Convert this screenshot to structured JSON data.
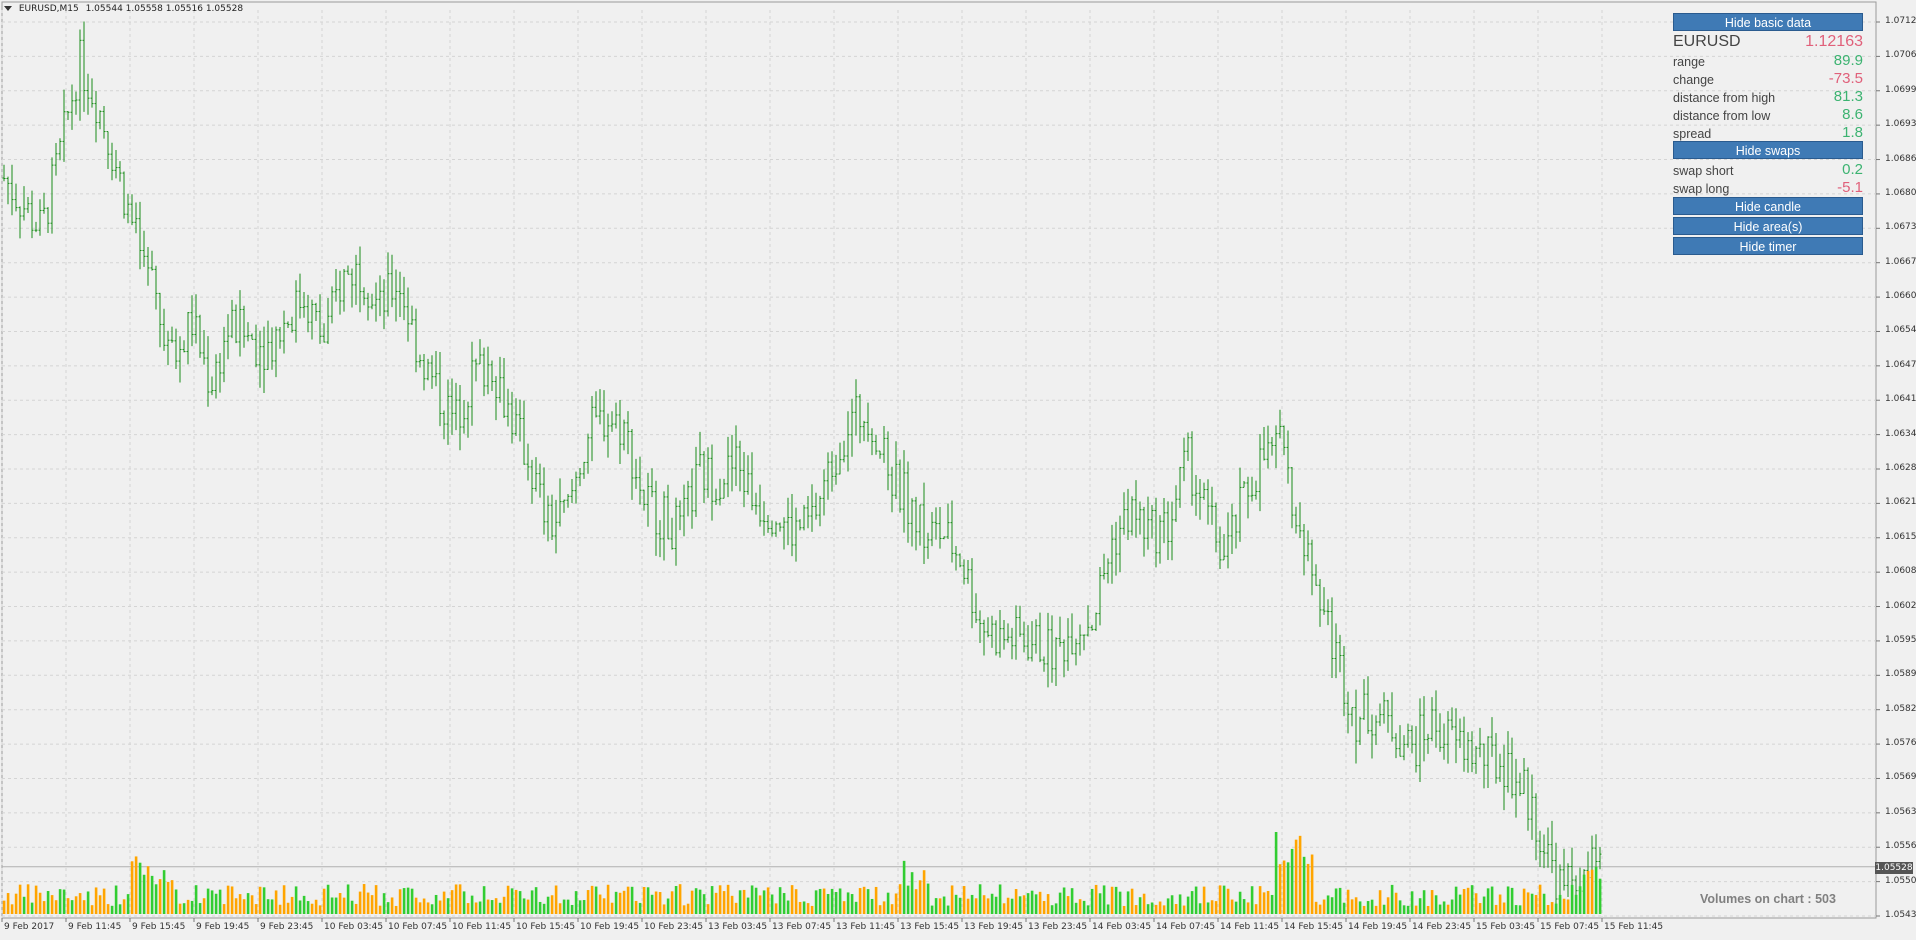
{
  "header": {
    "symbol_timeframe": "EURUSD,M15",
    "ohlc": "1.05544 1.05558 1.05516 1.05528"
  },
  "panel": {
    "hide_basic_data": "Hide basic data",
    "symbol": "EURUSD",
    "symbol_value": "1.12163",
    "rows": [
      {
        "label": "range",
        "value": "89.9",
        "color": "green"
      },
      {
        "label": "change",
        "value": "-73.5",
        "color": "red"
      },
      {
        "label": "distance from high",
        "value": "81.3",
        "color": "green"
      },
      {
        "label": "distance from low",
        "value": "8.6",
        "color": "green"
      },
      {
        "label": "spread",
        "value": "1.8",
        "color": "green"
      }
    ],
    "hide_swaps": "Hide swaps",
    "swaps": [
      {
        "label": "swap short",
        "value": "0.2",
        "color": "green"
      },
      {
        "label": "swap long",
        "value": "-5.1",
        "color": "red"
      }
    ],
    "hide_candle": "Hide candle",
    "hide_areas": "Hide area(s)",
    "hide_timer": "Hide timer"
  },
  "volumes_label": "Volumes on chart : 503",
  "current_price": "1.05528",
  "colors": {
    "background": "#f0f0f0",
    "bar_up_down": "#1a8c1a",
    "volume_green": "#32cd32",
    "volume_orange": "#ffa500",
    "button": "#3f7ab5",
    "positive": "#3cb371",
    "negative": "#e0607a"
  },
  "chart_data": {
    "type": "ohlc",
    "price_ticks": [
      "1.07125",
      "1.07060",
      "1.06995",
      "1.06930",
      "1.06865",
      "1.06800",
      "1.06735",
      "1.06670",
      "1.06605",
      "1.06540",
      "1.06475",
      "1.06410",
      "1.06345",
      "1.06280",
      "1.06215",
      "1.06150",
      "1.06085",
      "1.06020",
      "1.05955",
      "1.05890",
      "1.05825",
      "1.05760",
      "1.05695",
      "1.05630",
      "1.05565",
      "1.05500",
      "1.05435"
    ],
    "price_range": [
      1.05435,
      1.07125
    ],
    "time_ticks": [
      "9 Feb 2017",
      "9 Feb 11:45",
      "9 Feb 15:45",
      "9 Feb 19:45",
      "9 Feb 23:45",
      "10 Feb 03:45",
      "10 Feb 07:45",
      "10 Feb 11:45",
      "10 Feb 15:45",
      "10 Feb 19:45",
      "10 Feb 23:45",
      "13 Feb 03:45",
      "13 Feb 07:45",
      "13 Feb 11:45",
      "13 Feb 15:45",
      "13 Feb 19:45",
      "13 Feb 23:45",
      "14 Feb 03:45",
      "14 Feb 07:45",
      "14 Feb 11:45",
      "14 Feb 15:45",
      "14 Feb 19:45",
      "14 Feb 23:45",
      "15 Feb 03:45",
      "15 Feb 07:45",
      "15 Feb 11:45"
    ],
    "close_path": [
      1.0683,
      1.0678,
      1.0673,
      1.0688,
      1.0705,
      1.0697,
      1.0685,
      1.0672,
      1.0661,
      1.0648,
      1.0656,
      1.0644,
      1.0655,
      1.0653,
      1.0651,
      1.0656,
      1.0661,
      1.0652,
      1.0664,
      1.0666,
      1.0658,
      1.0664,
      1.0651,
      1.0643,
      1.0637,
      1.0646,
      1.0648,
      1.0638,
      1.0629,
      1.0617,
      1.062,
      1.0634,
      1.0638,
      1.0636,
      1.0623,
      1.0619,
      1.0616,
      1.0627,
      1.0626,
      1.0629,
      1.0622,
      1.062,
      1.0616,
      1.0618,
      1.0628,
      1.0637,
      1.0639,
      1.0628,
      1.0623,
      1.0616,
      1.0616,
      1.0611,
      1.0599,
      1.0596,
      1.0596,
      1.0595,
      1.0593,
      1.0598,
      1.06,
      1.0614,
      1.062,
      1.0616,
      1.0617,
      1.063,
      1.062,
      1.0611,
      1.0622,
      1.063,
      1.0632,
      1.0615,
      1.0605,
      1.0592,
      1.0581,
      1.0582,
      1.0579,
      1.0575,
      1.058,
      1.0577,
      1.0575,
      1.0573,
      1.0572,
      1.0567,
      1.0557,
      1.0548,
      1.0552,
      1.0553
    ],
    "volume_series_note": "",
    "ylim": [
      1.05435,
      1.07125
    ]
  }
}
